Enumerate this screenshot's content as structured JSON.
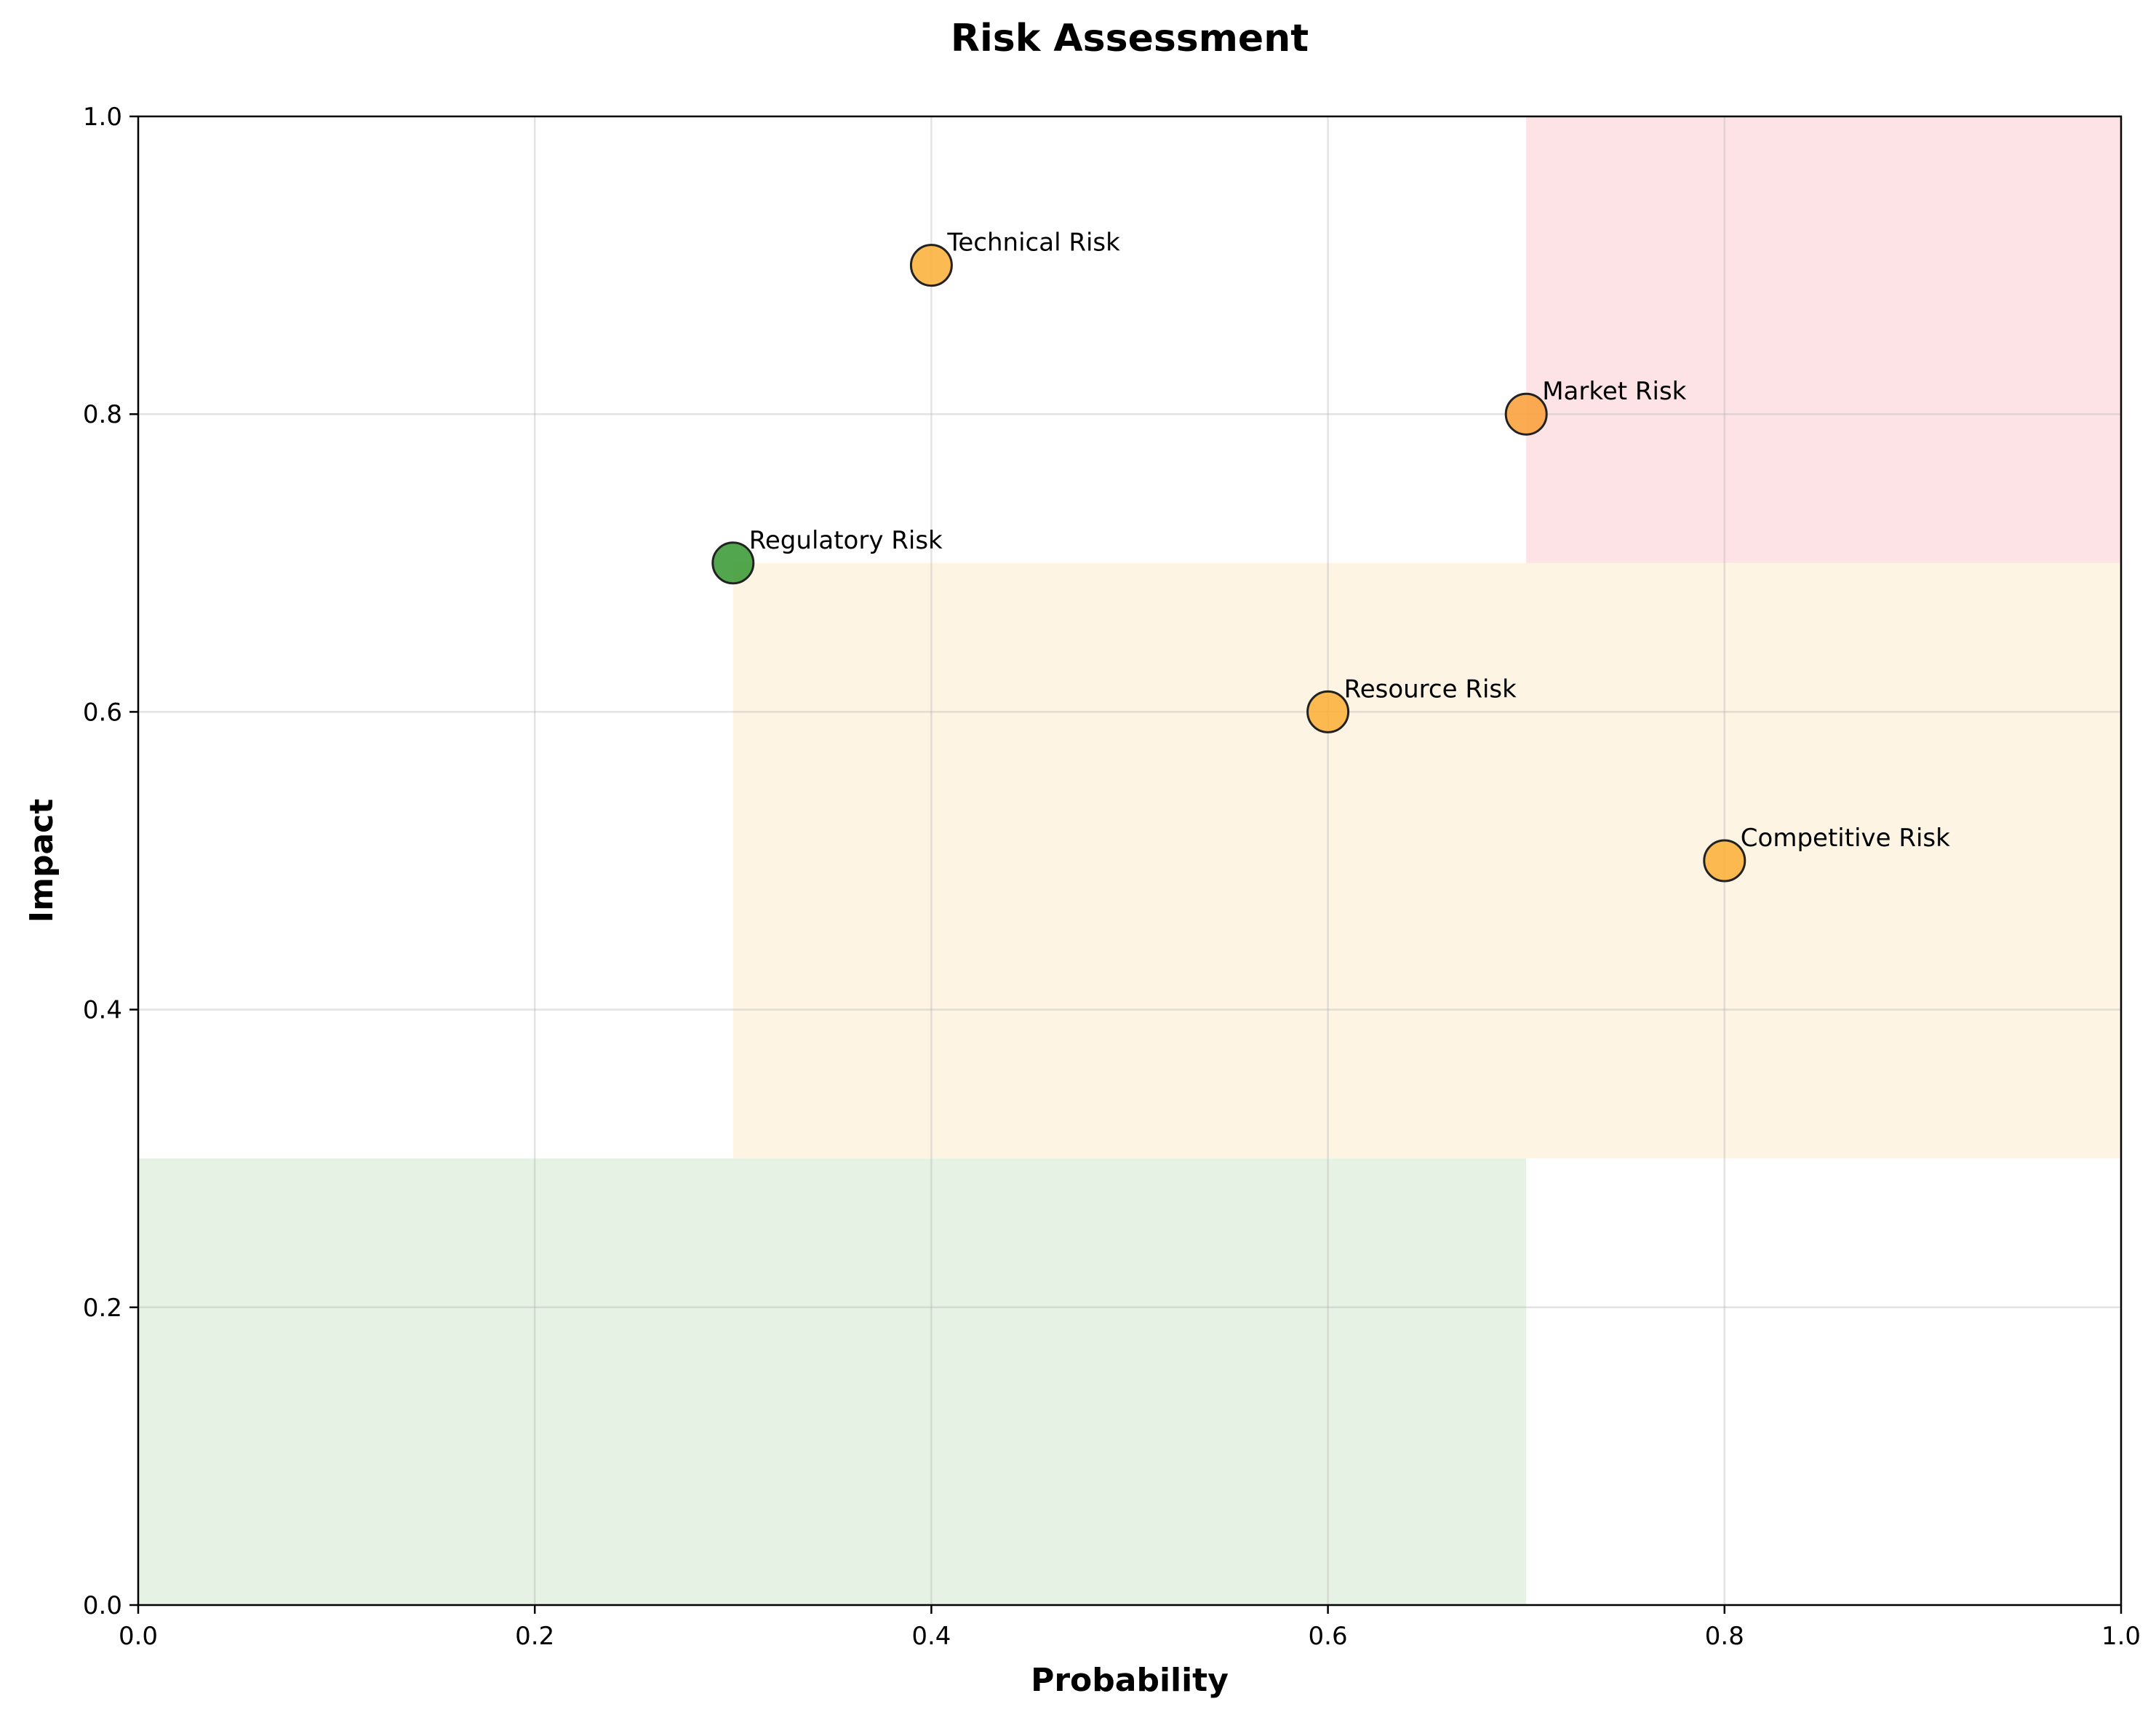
{
  "chart_data": {
    "type": "scatter",
    "title": "Risk Assessment",
    "xlabel": "Probability",
    "ylabel": "Impact",
    "xlim": [
      0,
      1
    ],
    "ylim": [
      0,
      1
    ],
    "grid": true,
    "xticks": [
      "0.0",
      "0.2",
      "0.4",
      "0.6",
      "0.8",
      "1.0"
    ],
    "yticks": [
      "0.0",
      "0.2",
      "0.4",
      "0.6",
      "0.8",
      "1.0"
    ],
    "zones": [
      {
        "id": "low",
        "x": [
          0,
          0.7
        ],
        "y": [
          0,
          0.3
        ],
        "color": "#e6f2e4"
      },
      {
        "id": "medium",
        "x": [
          0.3,
          1.0
        ],
        "y": [
          0.3,
          0.7
        ],
        "color": "#fdf4e3"
      },
      {
        "id": "high",
        "x": [
          0.7,
          1.0
        ],
        "y": [
          0.7,
          1.0
        ],
        "color": "#fde3e6"
      }
    ],
    "points": [
      {
        "label": "Technical Risk",
        "x": 0.4,
        "y": 0.9,
        "color": "#fbb33f"
      },
      {
        "label": "Market Risk",
        "x": 0.7,
        "y": 0.8,
        "color": "#fba23f"
      },
      {
        "label": "Regulatory Risk",
        "x": 0.3,
        "y": 0.7,
        "color": "#3f9c3a"
      },
      {
        "label": "Resource Risk",
        "x": 0.6,
        "y": 0.6,
        "color": "#fbb33f"
      },
      {
        "label": "Competitive Risk",
        "x": 0.8,
        "y": 0.5,
        "color": "#fbb33f"
      }
    ]
  }
}
